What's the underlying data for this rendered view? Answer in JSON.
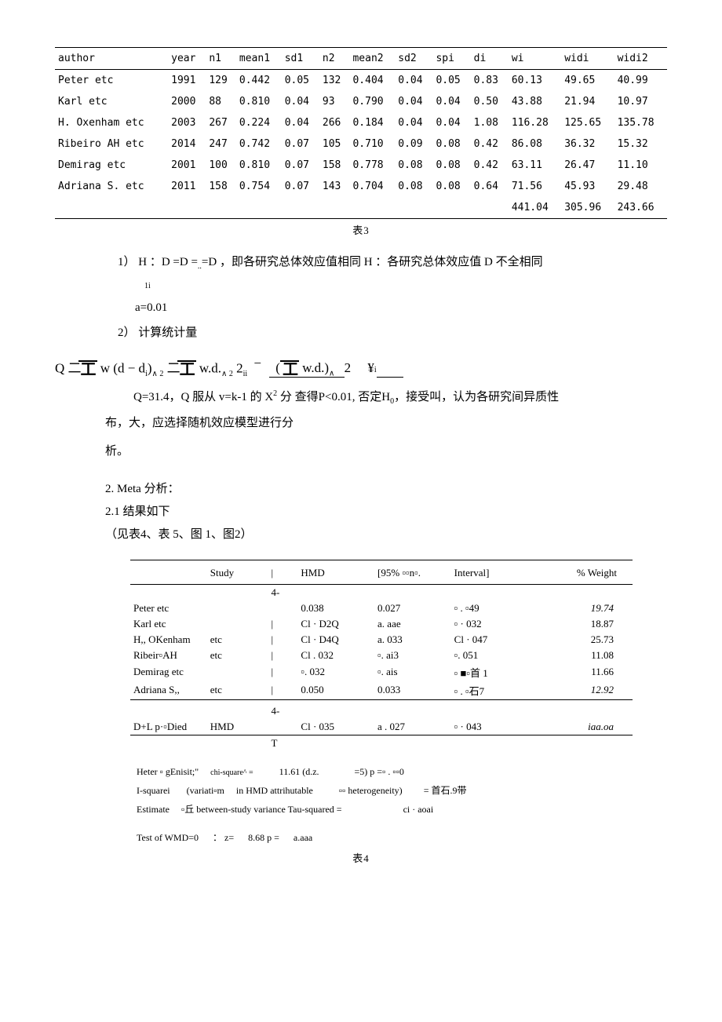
{
  "table3": {
    "columns": [
      "author",
      "year",
      "n1",
      "mean1",
      "sd1",
      "n2",
      "mean2",
      "sd2",
      "spi",
      "di",
      "wi",
      "widi",
      "widi2"
    ],
    "rows": [
      [
        "Peter etc",
        "1991",
        "129",
        "0.442",
        "0.05",
        "132",
        "0.404",
        "0.04",
        "0.05",
        "0.83",
        "60.13",
        "49.65",
        "40.99"
      ],
      [
        "Karl etc",
        "2000",
        "88",
        "0.810",
        "0.04",
        "93",
        "0.790",
        "0.04",
        "0.04",
        "0.50",
        "43.88",
        "21.94",
        "10.97"
      ],
      [
        "H. Oxenham etc",
        "2003",
        "267",
        "0.224",
        "0.04",
        "266",
        "0.184",
        "0.04",
        "0.04",
        "1.08",
        "116.28",
        "125.65",
        "135.78"
      ],
      [
        "Ribeiro AH etc",
        "2014",
        "247",
        "0.742",
        "0.07",
        "105",
        "0.710",
        "0.09",
        "0.08",
        "0.42",
        "86.08",
        "36.32",
        "15.32"
      ],
      [
        "Demirag etc",
        "2001",
        "100",
        "0.810",
        "0.07",
        "158",
        "0.778",
        "0.08",
        "0.08",
        "0.42",
        "63.11",
        "26.47",
        "11.10"
      ],
      [
        "Adriana S. etc",
        "2011",
        "158",
        "0.754",
        "0.07",
        "143",
        "0.704",
        "0.08",
        "0.08",
        "0.64",
        "71.56",
        "45.93",
        "29.48"
      ]
    ],
    "totals": [
      "",
      "",
      "",
      "",
      "",
      "",
      "",
      "",
      "",
      "",
      "441.04",
      "305.96",
      "243.66"
    ],
    "caption": "表3"
  },
  "text": {
    "li1_pre": "1）  H ：D =D =",
    "li1_cont": "=D ，即各研究总体效应值相同 H ：各研究总体效应值 D 不全相同",
    "li1_sub": "1i",
    "alpha": "a=0.01",
    "li2": "2）  计算统计量",
    "formula_q": "Q",
    "formula_mid1": "  w (d − d",
    "formula_mid1b": ")",
    "formula_pow": "∧ 2",
    "formula_mid2": "  w.d.",
    "formula_mid3": " 2",
    "formula_ii": "ii",
    "formula_minus": "−",
    "formula_num_l": "(",
    "formula_num_r": "  w.d.)",
    "formula_num_pow": "∧",
    "formula_den": "2",
    "formula_yen": "¥",
    "explain1": "Q=31.4，Q 服从 v=k-1 的 X",
    "explain1sup": "2",
    "explain1b": " 分    查得P<0.01, 否定H",
    "explain1c": "，接受叫，认为各研究间异质性",
    "explain2": "布，大，应选择随机效应模型进行分",
    "explain3": "析。",
    "sec1": "2. Meta 分析：",
    "sec2": "2.1 结果如下",
    "sec3": "（见表4、表 5、图 1、图2）"
  },
  "table4": {
    "headers": [
      "Study",
      "|",
      "HMD",
      "[95% ▫▫n▫.",
      "Interval]",
      "% Weight"
    ],
    "prefix1": "4-",
    "prefix2": "|",
    "rows": [
      [
        "Peter etc",
        "",
        "0.038",
        "0.027",
        "▫ . ▫49",
        "19.74"
      ],
      [
        "Karl etc",
        "",
        "Cl · D2Q",
        "a. aae",
        "▫ · 032",
        "18.87"
      ],
      [
        "H,, OKenham",
        "etc",
        "Cl · D4Q",
        "a. 033",
        "Cl · 047",
        "25.73"
      ],
      [
        "Ribeir▫AH",
        "etc",
        "Cl . 032",
        "▫. ai3",
        "▫. 051",
        "11.08"
      ],
      [
        "Demirag etc",
        "",
        "▫. 032",
        "▫. ais",
        "▫ ■▫首 1",
        "11.66"
      ],
      [
        "Adriana S,,",
        "etc",
        "0.050",
        "0.033",
        "▫ . ▫石7",
        "12.92"
      ]
    ],
    "pooled": [
      "D+L p·▫Died",
      "HMD",
      "Cl · 035",
      "a . 027",
      "▫ · 043",
      "iaa.oa"
    ],
    "t_row": "T",
    "foot": {
      "l1a": "Heter ▫ gEnisit;\"",
      "l1b": "chi-squ",
      "l1c": "are^ =",
      "l1d": "11.61 (d.z.",
      "l1e": "=5) p =▫ . ▫▫0",
      "l2a": "I-squarei",
      "l2b": "(variati▫m",
      "l2c": "in HMD attrihutable",
      "l2d": "▫▫ heterogeneity)",
      "l2e": "= 首石.9带",
      "l3a": "Estimate",
      "l3b": "▫丘 between-study variance Tau-squared =",
      "l3c": "ci · aoai",
      "l4a": "Test of WMD=0",
      "l4b": "： z=",
      "l4c": "8.68 p =",
      "l4d": "a.aaa"
    },
    "caption": "表4"
  }
}
